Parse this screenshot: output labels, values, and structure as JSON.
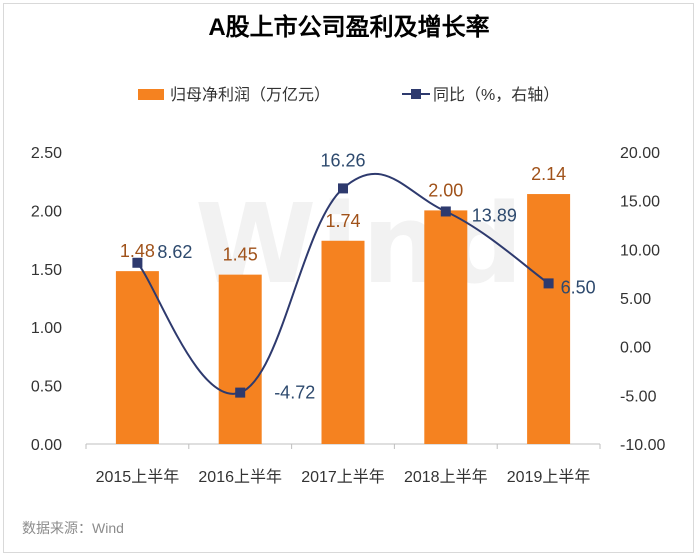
{
  "chart_data": {
    "type": "bar+line",
    "title": "A股上市公司盈利及增长率",
    "categories": [
      "2015上半年",
      "2016上半年",
      "2017上半年",
      "2018上半年",
      "2019上半年"
    ],
    "series": [
      {
        "name": "归母净利润（万亿元）",
        "type": "bar",
        "axis": "left",
        "color": "#F58220",
        "values": [
          1.48,
          1.45,
          1.74,
          2.0,
          2.14
        ],
        "labels": [
          "1.48",
          "1.45",
          "1.74",
          "2.00",
          "2.14"
        ],
        "label_color": "#A0521A"
      },
      {
        "name": "同比（%，右轴）",
        "type": "line",
        "axis": "right",
        "color": "#2E3A6E",
        "values": [
          8.62,
          -4.72,
          16.26,
          13.89,
          6.5
        ],
        "labels": [
          "8.62",
          "-4.72",
          "16.26",
          "13.89",
          "6.50"
        ],
        "label_color": "#2E4A6E"
      }
    ],
    "y_left": {
      "range": [
        0,
        2.5
      ],
      "ticks": [
        "0.00",
        "0.50",
        "1.00",
        "1.50",
        "2.00",
        "2.50"
      ]
    },
    "y_right": {
      "range": [
        -10,
        20
      ],
      "ticks": [
        "-10.00",
        "-5.00",
        "0.00",
        "5.00",
        "10.00",
        "15.00",
        "20.00"
      ]
    },
    "legend_position": "top",
    "grid": false,
    "watermark": "Wind",
    "source": "数据来源：Wind"
  }
}
